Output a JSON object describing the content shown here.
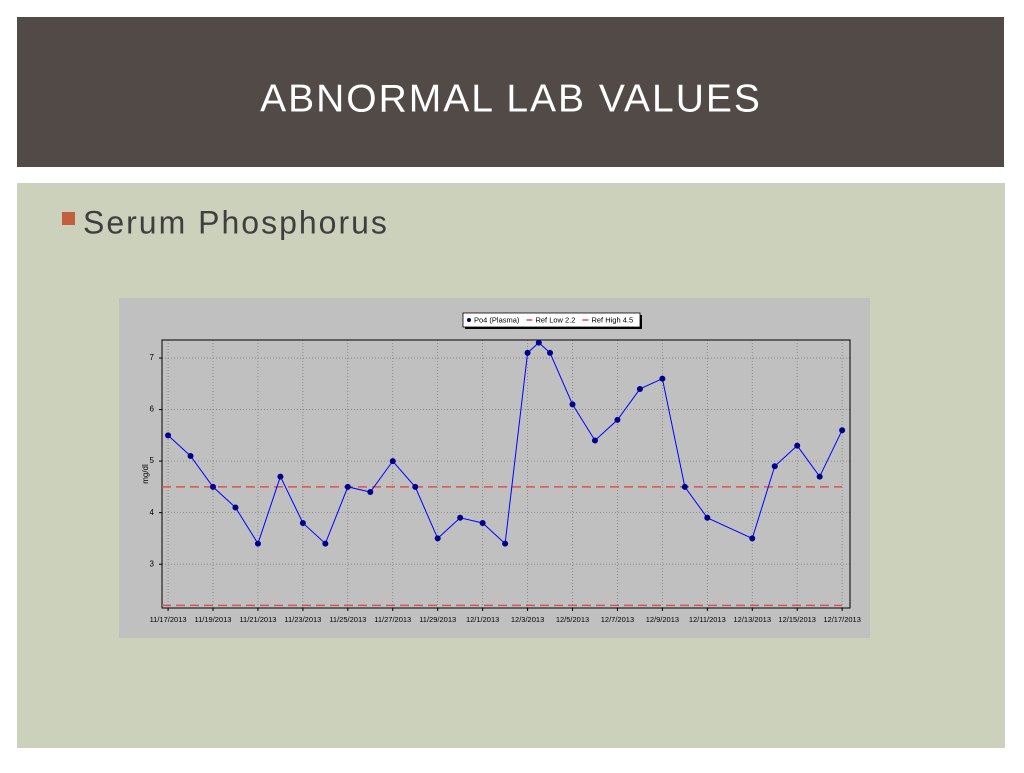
{
  "title": "ABNORMAL LAB VALUES",
  "bullet": "Serum Phosphorus",
  "chart_data": {
    "type": "line",
    "y_label": "mg/dl",
    "x": [
      0,
      1,
      2,
      3,
      4,
      5,
      6,
      7,
      8,
      9,
      10,
      11,
      12,
      13,
      14,
      15,
      16,
      16.5,
      17,
      18,
      19,
      20,
      21,
      22,
      23,
      24,
      26,
      27,
      28,
      29,
      30
    ],
    "series": [
      {
        "name": "Po4 (Plasma)",
        "color": "#0000ff",
        "marker_color": "#00008b",
        "values": [
          5.5,
          5.1,
          4.5,
          4.1,
          3.4,
          4.7,
          3.8,
          3.4,
          4.5,
          4.4,
          5.0,
          4.5,
          3.5,
          3.9,
          3.8,
          3.4,
          7.1,
          7.3,
          7.1,
          6.1,
          5.4,
          5.8,
          6.4,
          6.6,
          4.5,
          3.9,
          3.5,
          4.9,
          5.3,
          4.7,
          5.6
        ]
      }
    ],
    "reference_lines": [
      {
        "name": "Ref Low 2.2",
        "value": 2.2,
        "color": "#e05050"
      },
      {
        "name": "Ref High 4.5",
        "value": 4.5,
        "color": "#e05050"
      }
    ],
    "xlim": [
      -0.27,
      30.35
    ],
    "xticks": [
      {
        "value": 0,
        "label": "11/17/2013"
      },
      {
        "value": 2,
        "label": "11/19/2013"
      },
      {
        "value": 4,
        "label": "11/21/2013"
      },
      {
        "value": 6,
        "label": "11/23/2013"
      },
      {
        "value": 8,
        "label": "11/25/2013"
      },
      {
        "value": 10,
        "label": "11/27/2013"
      },
      {
        "value": 12,
        "label": "11/29/2013"
      },
      {
        "value": 14,
        "label": "12/1/2013"
      },
      {
        "value": 16,
        "label": "12/3/2013"
      },
      {
        "value": 18,
        "label": "12/5/2013"
      },
      {
        "value": 20,
        "label": "12/7/2013"
      },
      {
        "value": 22,
        "label": "12/9/2013"
      },
      {
        "value": 24,
        "label": "12/11/2013"
      },
      {
        "value": 26,
        "label": "12/13/2013"
      },
      {
        "value": 28,
        "label": "12/15/2013"
      },
      {
        "value": 30,
        "label": "12/17/2013"
      }
    ],
    "ylim": [
      2.15,
      7.35
    ],
    "yticks": [
      3,
      4,
      5,
      6,
      7
    ],
    "grid": true
  }
}
